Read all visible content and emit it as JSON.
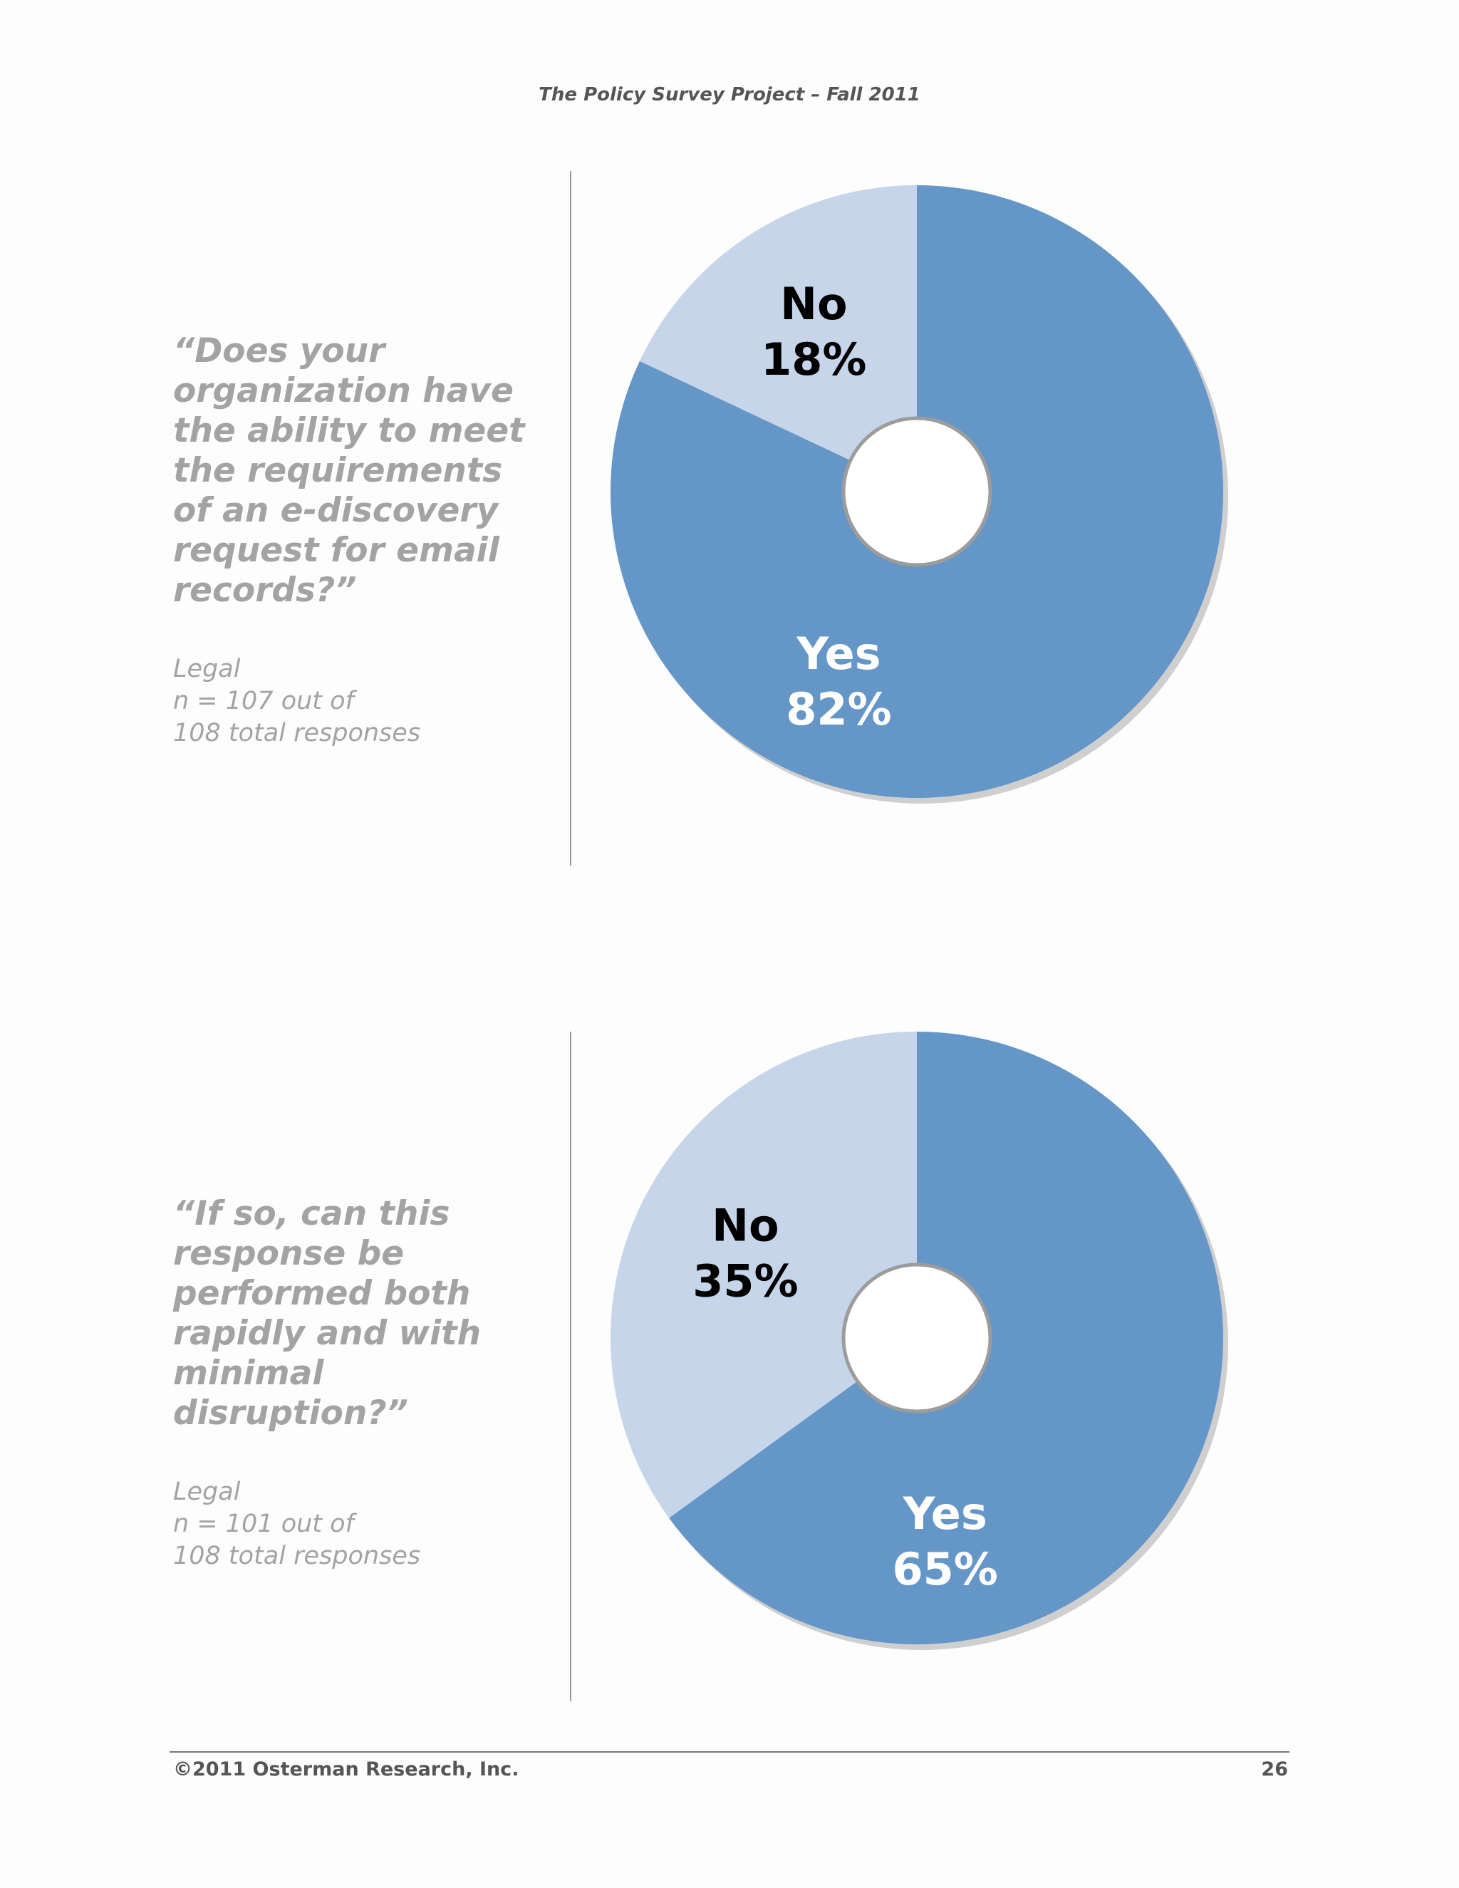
{
  "header": {
    "title": "The Policy Survey Project – Fall 2011"
  },
  "charts": [
    {
      "question": "“Does your organization have the ability to meet the requirements of an e-discovery request for email records?”",
      "meta": [
        "Legal",
        "n = 107 out of",
        "108 total responses"
      ]
    },
    {
      "question": "“If so, can this response be performed both rapidly and with minimal disruption?”",
      "meta": [
        "Legal",
        "n = 101 out of",
        "108 total responses"
      ]
    }
  ],
  "chart_data": [
    {
      "type": "pie",
      "title": "",
      "categories": [
        "Yes",
        "No"
      ],
      "values": [
        82,
        18
      ],
      "labels": [
        {
          "name": "Yes",
          "pct": "82%"
        },
        {
          "name": "No",
          "pct": "18%"
        }
      ],
      "colors": [
        "#6596c8",
        "#c6d5e9"
      ],
      "label_colors": [
        "#ffffff",
        "#000000"
      ]
    },
    {
      "type": "pie",
      "title": "",
      "categories": [
        "Yes",
        "No"
      ],
      "values": [
        65,
        35
      ],
      "labels": [
        {
          "name": "Yes",
          "pct": "65%"
        },
        {
          "name": "No",
          "pct": "35%"
        }
      ],
      "colors": [
        "#6596c8",
        "#c6d5e9"
      ],
      "label_colors": [
        "#ffffff",
        "#000000"
      ]
    }
  ],
  "footer": {
    "copyright": "©2011 Osterman Research, Inc.",
    "page": "26"
  }
}
